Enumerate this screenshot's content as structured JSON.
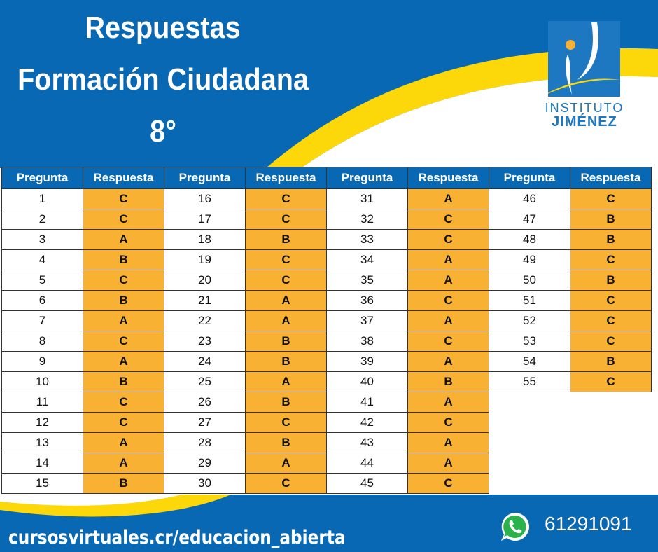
{
  "header": {
    "title_line1": "Respuestas",
    "title_line2": "Formación Ciudadana",
    "title_line3": "8°"
  },
  "logo": {
    "line1": "INSTITUTO",
    "line2": "JIMÉNEZ"
  },
  "table": {
    "headers": [
      "Pregunta",
      "Respuesta"
    ],
    "answers": [
      "C",
      "C",
      "A",
      "B",
      "C",
      "B",
      "A",
      "C",
      "A",
      "B",
      "C",
      "C",
      "A",
      "A",
      "B",
      "C",
      "C",
      "B",
      "C",
      "C",
      "A",
      "A",
      "B",
      "B",
      "A",
      "B",
      "C",
      "B",
      "A",
      "C",
      "A",
      "C",
      "C",
      "A",
      "A",
      "C",
      "A",
      "C",
      "A",
      "B",
      "A",
      "C",
      "A",
      "A",
      "C",
      "C",
      "B",
      "B",
      "C",
      "B",
      "C",
      "C",
      "C",
      "B",
      "C"
    ]
  },
  "footer": {
    "url": "cursosvirtuales.cr/educacion_abierta",
    "phone": "61291091",
    "phone_icon": "whatsapp-icon"
  },
  "colors": {
    "blue": "#0868b3",
    "yellow": "#fcd80a",
    "orange": "#f8b133"
  }
}
